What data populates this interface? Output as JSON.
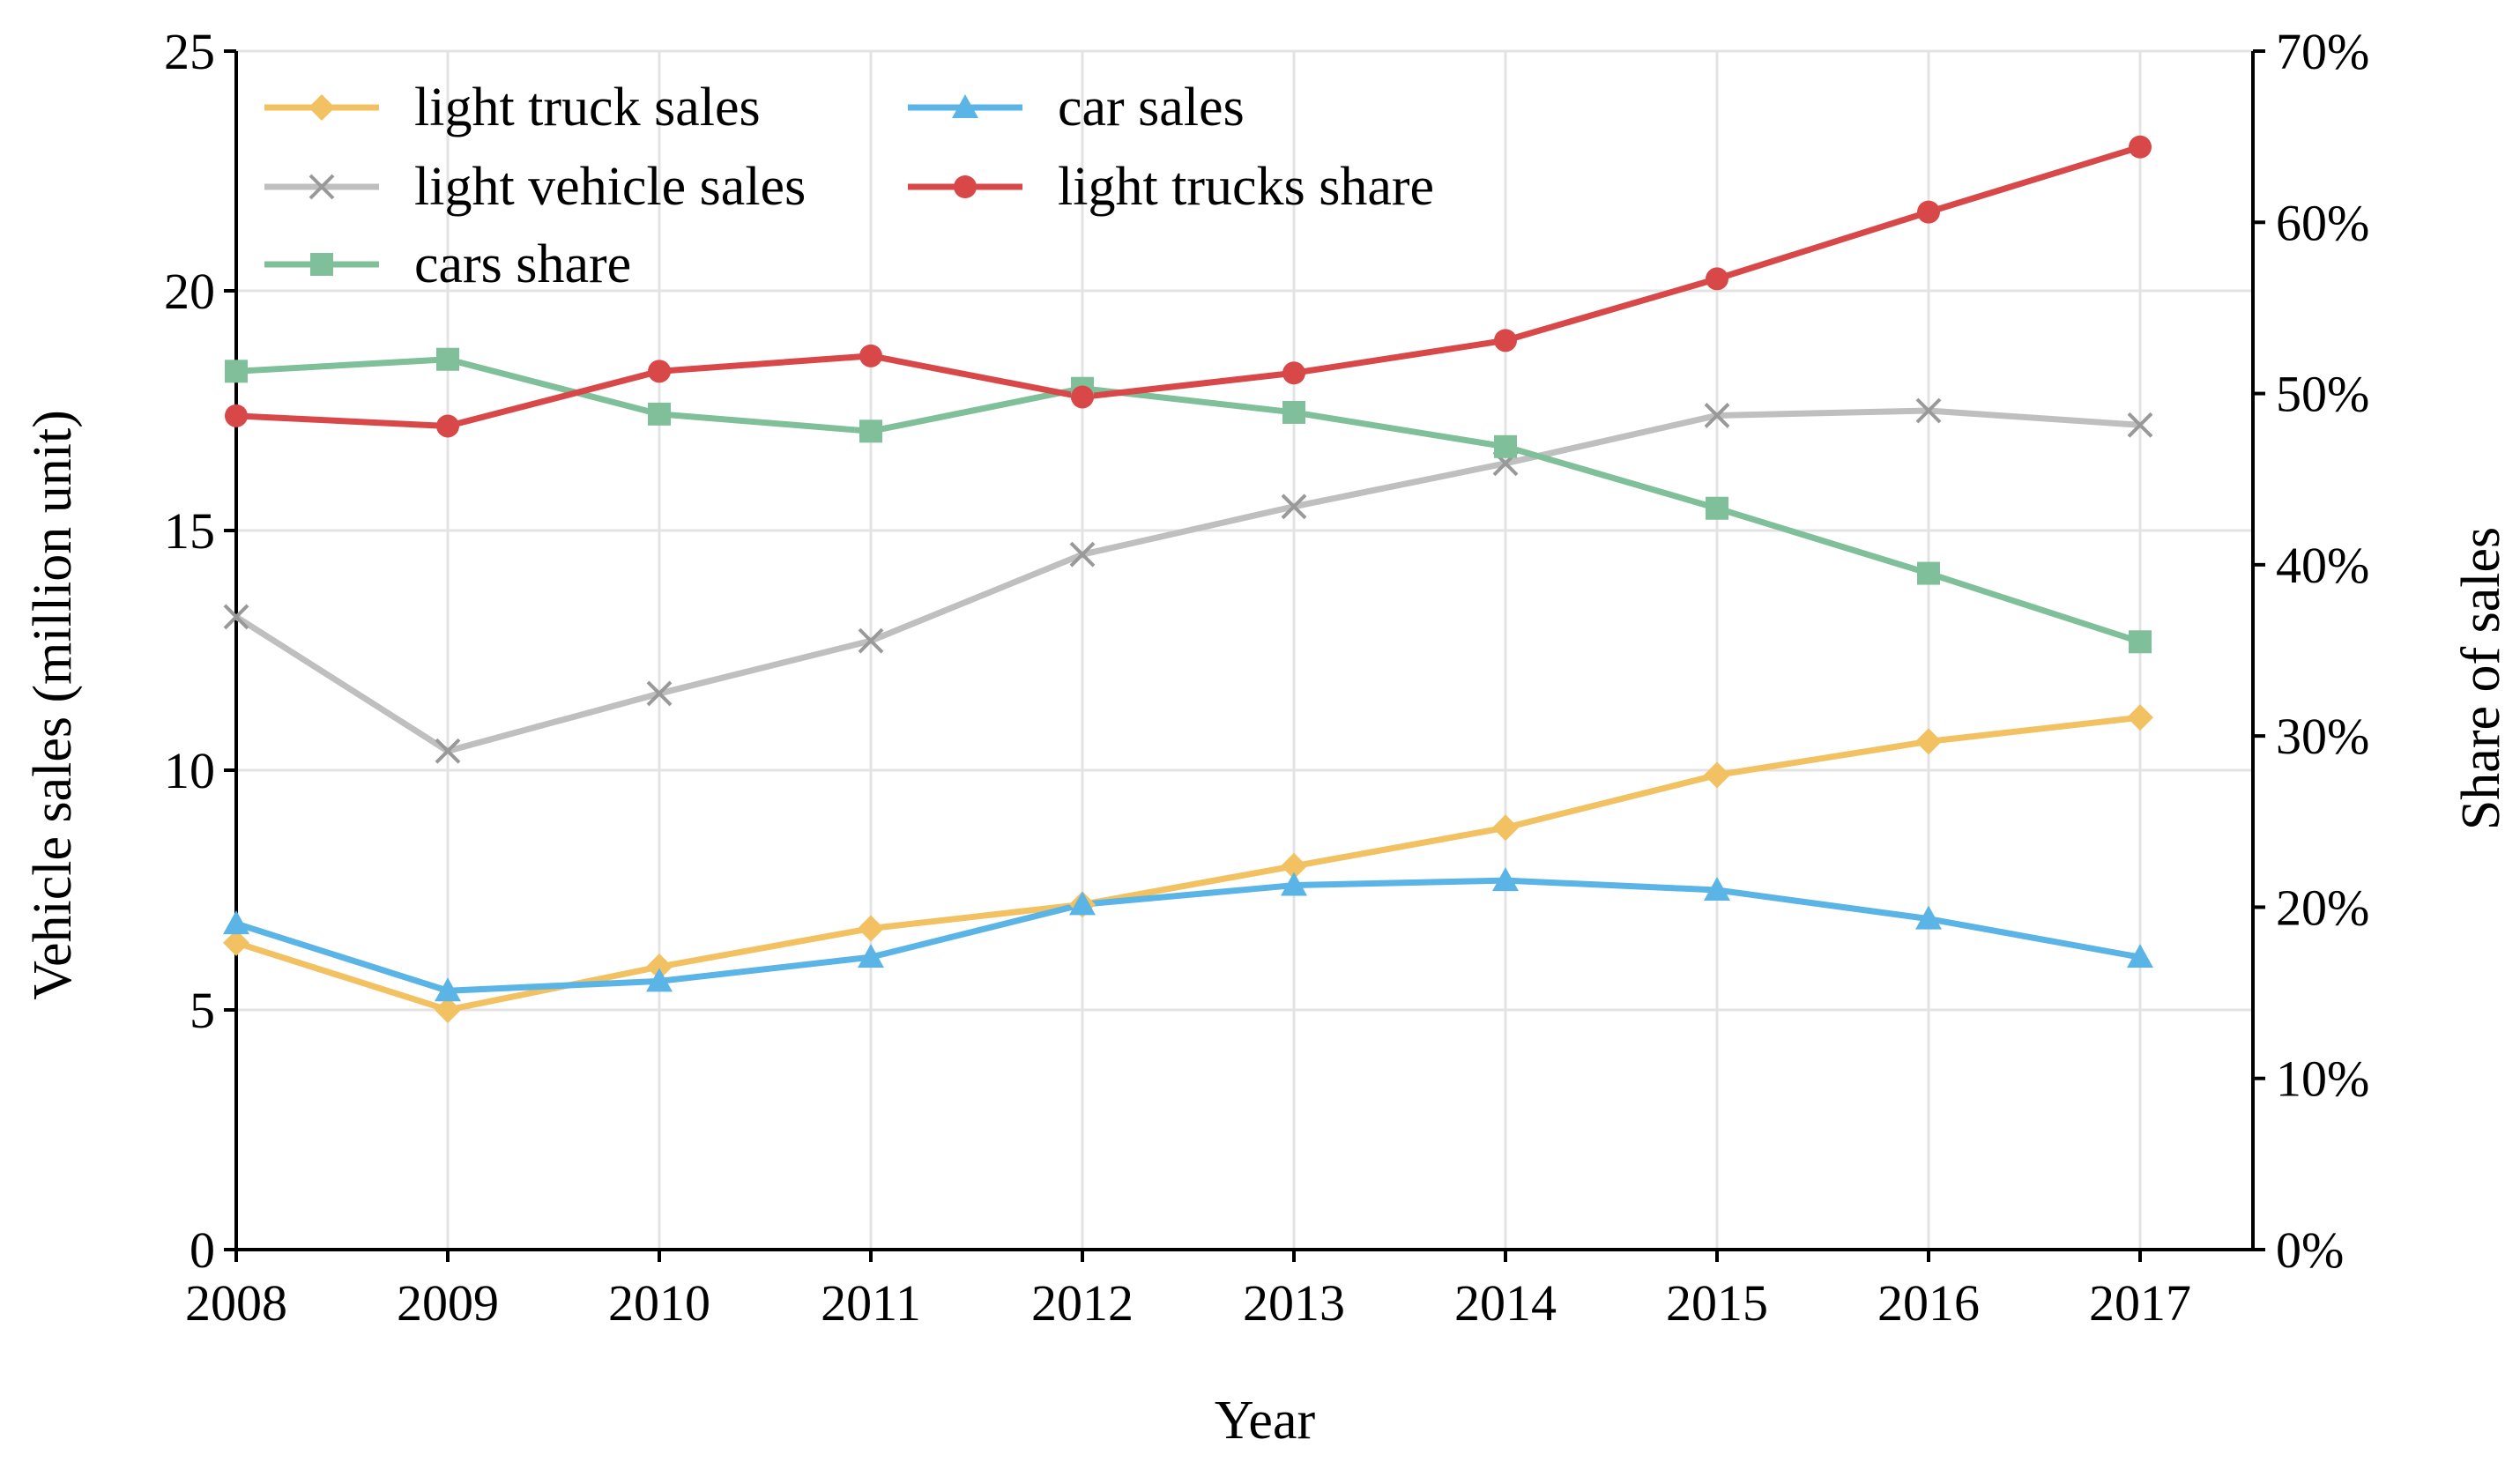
{
  "chart_data": {
    "type": "line",
    "title": "",
    "xlabel": "Year",
    "ylabel": "Vehicle sales (million unit)",
    "y2label": "Share of sales",
    "categories": [
      "2008",
      "2009",
      "2010",
      "2011",
      "2012",
      "2013",
      "2014",
      "2015",
      "2016",
      "2017"
    ],
    "ylim": [
      0,
      25
    ],
    "y2lim": [
      0,
      70
    ],
    "yticks": [
      "0",
      "5",
      "10",
      "15",
      "20",
      "25"
    ],
    "y2ticks": [
      "0%",
      "10%",
      "20%",
      "30%",
      "40%",
      "50%",
      "60%",
      "70%"
    ],
    "grid": true,
    "legend_position": "top-left",
    "series": [
      {
        "name": "light truck sales",
        "axis": "left",
        "color": "#f2c162",
        "marker": "diamond",
        "values": [
          6.4,
          5.0,
          5.9,
          6.7,
          7.2,
          8.0,
          8.8,
          9.9,
          10.6,
          11.1
        ]
      },
      {
        "name": "car sales",
        "axis": "left",
        "color": "#5ab4e5",
        "marker": "triangle",
        "values": [
          6.8,
          5.4,
          5.6,
          6.1,
          7.2,
          7.6,
          7.7,
          7.5,
          6.9,
          6.1
        ]
      },
      {
        "name": "light vehicle sales",
        "axis": "left",
        "color": "#bfbfbf",
        "marker": "x",
        "values": [
          13.2,
          10.4,
          11.6,
          12.7,
          14.5,
          15.5,
          16.4,
          17.4,
          17.5,
          17.2
        ]
      },
      {
        "name": "light trucks share",
        "axis": "right",
        "color": "#d94848",
        "marker": "circle",
        "values": [
          48.7,
          48.1,
          51.3,
          52.2,
          49.8,
          51.2,
          53.1,
          56.7,
          60.6,
          64.4
        ]
      },
      {
        "name": "cars share",
        "axis": "right",
        "color": "#7fbf9a",
        "marker": "square",
        "values": [
          51.3,
          52.0,
          48.8,
          47.8,
          50.3,
          48.9,
          46.9,
          43.3,
          39.5,
          35.5
        ]
      }
    ]
  }
}
